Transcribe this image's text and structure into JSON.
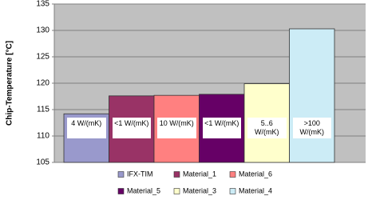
{
  "chart_data": {
    "type": "bar",
    "y_label": "Chip-Temperature [°C]",
    "categories": [
      null
    ],
    "series": [
      {
        "name": "IFX-TIM",
        "color": "#9999cc",
        "values": [
          114.2
        ],
        "annotation": "4 W/(mK)"
      },
      {
        "name": "Material_1",
        "color": "#993366",
        "values": [
          117.6
        ],
        "annotation": "<1 W/(mK)"
      },
      {
        "name": "Material_6",
        "color": "#ff8080",
        "values": [
          117.7
        ],
        "annotation": "10 W/(mK)"
      },
      {
        "name": "Material_5",
        "color": "#660066",
        "values": [
          117.9
        ],
        "annotation": "<1 W/(mK)"
      },
      {
        "name": "Material_3",
        "color": "#ffffcc",
        "values": [
          119.9
        ],
        "annotation": "5..6 W/(mK)"
      },
      {
        "name": "Material_4",
        "color": "#ccecf6",
        "values": [
          130.3
        ],
        "annotation": ">100 W/(mK)"
      }
    ],
    "ylim": [
      105,
      135
    ],
    "yticks": [
      105,
      110,
      115,
      120,
      125,
      130,
      135
    ],
    "grid": true,
    "legend": "bottom"
  }
}
